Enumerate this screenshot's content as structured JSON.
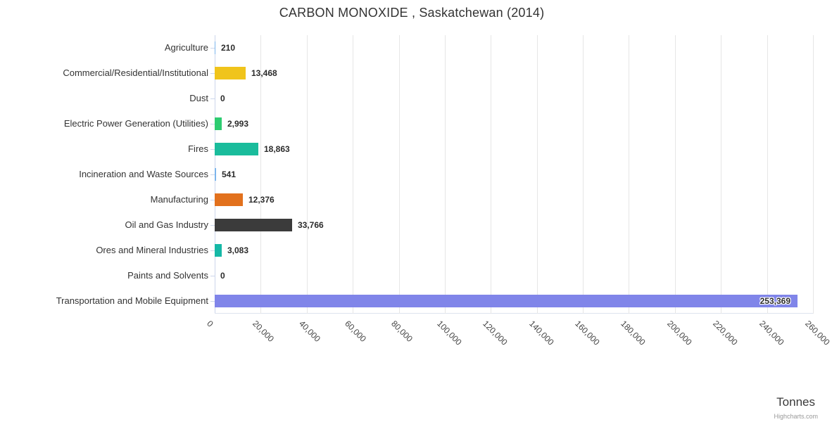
{
  "chart_data": {
    "type": "bar",
    "title": "CARBON MONOXIDE , Saskatchewan (2014)",
    "xlabel": "Tonnes",
    "axis_max": 260000,
    "tick_interval": 20000,
    "grid": true,
    "legend": "none",
    "tick_labels": [
      "0",
      "20,000",
      "40,000",
      "60,000",
      "80,000",
      "100,000",
      "120,000",
      "140,000",
      "160,000",
      "180,000",
      "200,000",
      "220,000",
      "240,000",
      "260,000"
    ],
    "categories": [
      "Agriculture",
      "Commercial/Residential/Institutional",
      "Dust",
      "Electric Power Generation (Utilities)",
      "Fires",
      "Incineration and Waste Sources",
      "Manufacturing",
      "Oil and Gas Industry",
      "Ores and Mineral Industries",
      "Paints and Solvents",
      "Transportation and Mobile Equipment"
    ],
    "values": [
      210,
      13468,
      0,
      2993,
      18863,
      541,
      12376,
      33766,
      3083,
      0,
      253369
    ],
    "value_labels": [
      "210",
      "13,468",
      "0",
      "2,993",
      "18,863",
      "541",
      "12,376",
      "33,766",
      "3,083",
      "0",
      "253,369"
    ],
    "colors": [
      "#7cb5ec",
      "#f0c41b",
      "#7cb5ec",
      "#2ecc71",
      "#1abc9c",
      "#7cb5ec",
      "#e2711d",
      "#3b3b3b",
      "#15b8a6",
      "#7cb5ec",
      "#8085e9"
    ]
  },
  "credits": "Highcharts.com"
}
